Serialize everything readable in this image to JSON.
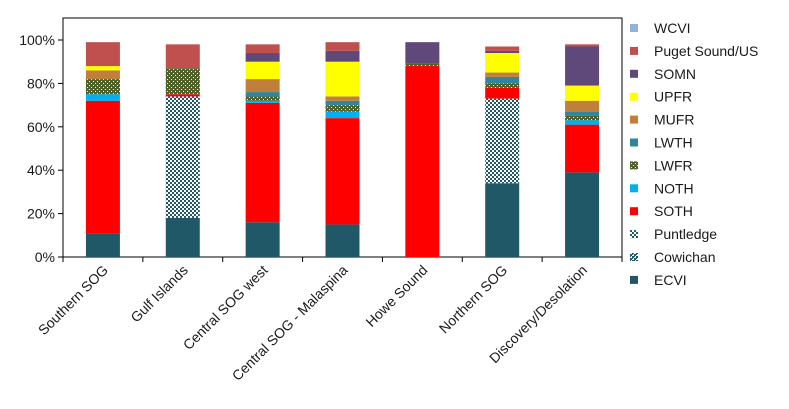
{
  "chart_data": {
    "type": "bar",
    "stacked": true,
    "percent": true,
    "title": "",
    "xlabel": "",
    "ylabel": "",
    "ylim": [
      0,
      100
    ],
    "yticks": [
      "0%",
      "20%",
      "40%",
      "60%",
      "80%",
      "100%"
    ],
    "categories": [
      "Southern SOG",
      "Gulf Islands",
      "Central SOG west",
      "Central SOG - Malaspina",
      "Howe Sound",
      "Northern SOG",
      "Discovery/Desolation"
    ],
    "series": [
      {
        "name": "ECVI",
        "color": "#215868",
        "pattern": "solid",
        "values": [
          11,
          18,
          16,
          15,
          0,
          34,
          39
        ]
      },
      {
        "name": "Cowichan",
        "color": "#215868",
        "pattern": "dense-checker",
        "values": [
          0,
          0,
          0,
          0,
          0,
          0,
          0
        ]
      },
      {
        "name": "Puntledge",
        "color": "#215868",
        "pattern": "checker",
        "values": [
          0,
          56,
          0,
          0,
          0,
          39,
          0
        ]
      },
      {
        "name": "SOTH",
        "color": "#ff0000",
        "pattern": "solid",
        "values": [
          61,
          1,
          55,
          49,
          88,
          5,
          22
        ]
      },
      {
        "name": "NOTH",
        "color": "#00b0f0",
        "pattern": "solid",
        "values": [
          3,
          0,
          1,
          3,
          0,
          0,
          2
        ]
      },
      {
        "name": "LWFR",
        "color": "#4f6228",
        "pattern": "dotted",
        "values": [
          7,
          12,
          2,
          3,
          1,
          2,
          2
        ]
      },
      {
        "name": "LWTH",
        "color": "#31859c",
        "pattern": "solid",
        "values": [
          0,
          0,
          2,
          2,
          0,
          3,
          2
        ]
      },
      {
        "name": "MUFR",
        "color": "#c0803b",
        "pattern": "solid",
        "values": [
          4,
          0,
          6,
          2,
          0,
          2,
          5
        ]
      },
      {
        "name": "UPFR",
        "color": "#ffff00",
        "pattern": "solid",
        "values": [
          2,
          0,
          8,
          16,
          0,
          9,
          7
        ]
      },
      {
        "name": "SOMN",
        "color": "#5f497a",
        "pattern": "solid",
        "values": [
          0,
          0,
          4,
          5,
          10,
          1,
          18
        ]
      },
      {
        "name": "Puget Sound/US",
        "color": "#c0504d",
        "pattern": "solid",
        "values": [
          11,
          11,
          4,
          4,
          0,
          2,
          1
        ]
      },
      {
        "name": "WCVI",
        "color": "#95b3d7",
        "pattern": "solid",
        "values": [
          0,
          0,
          0,
          0,
          0,
          0,
          0
        ]
      }
    ],
    "legend_position": "right",
    "grid": false
  }
}
